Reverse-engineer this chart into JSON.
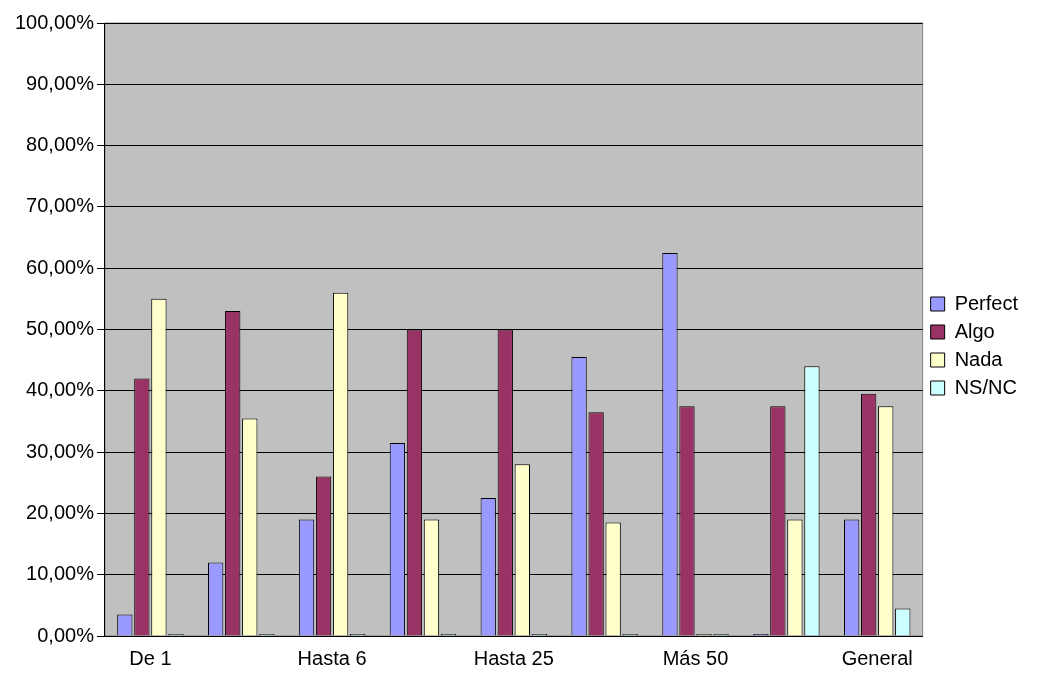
{
  "chart_data": {
    "type": "bar",
    "categories": [
      "De 1",
      null,
      "Hasta 6",
      null,
      "Hasta 25",
      null,
      "Más 50",
      null,
      "General"
    ],
    "series": [
      {
        "name": "Perfect",
        "color": "#9999ff",
        "values": [
          3.5,
          12,
          19,
          31.5,
          22.5,
          45.5,
          62.5,
          0,
          19
        ]
      },
      {
        "name": "Algo",
        "color": "#993366",
        "values": [
          42,
          53,
          26,
          50,
          50,
          36.5,
          37.5,
          37.5,
          39.5
        ]
      },
      {
        "name": "Nada",
        "color": "#ffffcc",
        "values": [
          55,
          35.5,
          56,
          19,
          28,
          18.5,
          0,
          19,
          37.5
        ]
      },
      {
        "name": "NS/NC",
        "color": "#ccffff",
        "values": [
          0,
          0,
          0,
          0,
          0,
          0,
          0,
          44,
          4.5
        ]
      }
    ],
    "ylim": [
      0,
      100
    ],
    "yticks": [
      {
        "value": 0,
        "label": "0,00%"
      },
      {
        "value": 10,
        "label": "10,00%"
      },
      {
        "value": 20,
        "label": "20,00%"
      },
      {
        "value": 30,
        "label": "30,00%"
      },
      {
        "value": 40,
        "label": "40,00%"
      },
      {
        "value": 50,
        "label": "50,00%"
      },
      {
        "value": 60,
        "label": "60,00%"
      },
      {
        "value": 70,
        "label": "70,00%"
      },
      {
        "value": 80,
        "label": "80,00%"
      },
      {
        "value": 90,
        "label": "90,00%"
      },
      {
        "value": 100,
        "label": "100,00%"
      }
    ],
    "grid": "y",
    "legend": "right"
  }
}
